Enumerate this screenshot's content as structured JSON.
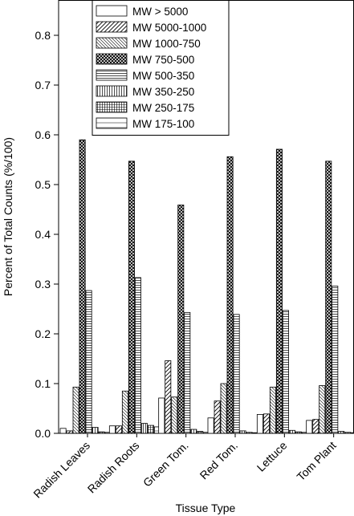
{
  "chart_data": {
    "type": "bar",
    "title": "",
    "xlabel": "Tissue Type",
    "ylabel": "Percent of Total Counts (%/100)",
    "ylim": [
      0,
      0.85
    ],
    "yticks": [
      0.0,
      0.1,
      0.2,
      0.3,
      0.4,
      0.5,
      0.6,
      0.7,
      0.8
    ],
    "ytick_labels": [
      "0.0",
      "0.1",
      "0.2",
      "0.3",
      "0.4",
      "0.5",
      "0.6",
      "0.7",
      "0.8"
    ],
    "grid": false,
    "legend_position": "top-center",
    "categories": [
      "Radish Leaves",
      "Radish Roots",
      "Green Tom.",
      "Red Tom.",
      "Lettuce",
      "Tom Plant"
    ],
    "series": [
      {
        "name": "MW > 5000",
        "pattern": "blank",
        "values": [
          0.01,
          0.015,
          0.071,
          0.031,
          0.038,
          0.026
        ]
      },
      {
        "name": "MW 5000-1000",
        "pattern": "diag-up",
        "values": [
          0.005,
          0.015,
          0.146,
          0.065,
          0.039,
          0.028
        ]
      },
      {
        "name": "MW 1000-750",
        "pattern": "diag-down",
        "values": [
          0.093,
          0.085,
          0.073,
          0.1,
          0.093,
          0.096
        ]
      },
      {
        "name": "MW 750-500",
        "pattern": "crosshatch",
        "values": [
          0.59,
          0.547,
          0.459,
          0.556,
          0.571,
          0.547
        ]
      },
      {
        "name": "MW 500-350",
        "pattern": "hlines",
        "values": [
          0.287,
          0.313,
          0.243,
          0.239,
          0.247,
          0.296
        ]
      },
      {
        "name": "MW 350-250",
        "pattern": "vlines",
        "values": [
          0.012,
          0.02,
          0.008,
          0.005,
          0.006,
          0.004
        ]
      },
      {
        "name": "MW 250-175",
        "pattern": "grid",
        "values": [
          0.003,
          0.016,
          0.004,
          0.002,
          0.003,
          0.002
        ]
      },
      {
        "name": "MW 175-100",
        "pattern": "sparse-hlines",
        "values": [
          0.002,
          0.013,
          0.002,
          0.001,
          0.002,
          0.001
        ]
      }
    ]
  }
}
